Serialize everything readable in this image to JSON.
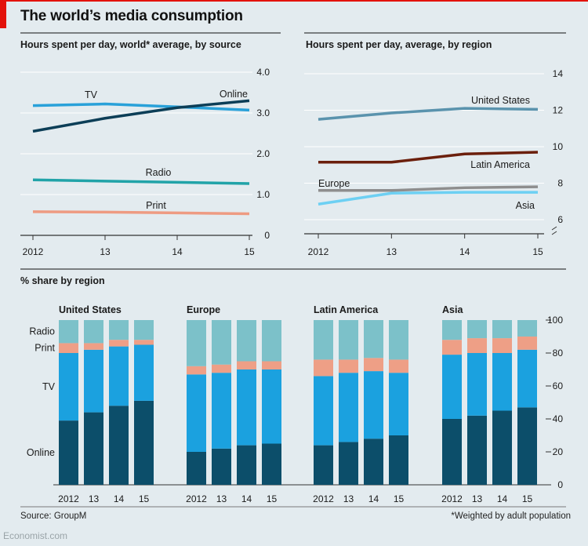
{
  "header": {
    "title": "The world’s media consumption",
    "source": "Source: GroupM",
    "footnote": "*Weighted by adult population",
    "credit": "Economist.com"
  },
  "colors": {
    "background": "#e3ebef",
    "accent_red": "#e3120b",
    "tv": "#29a1d9",
    "online": "#0c3e57",
    "radio": "#21a3a8",
    "print": "#ee9b82",
    "us": "#5a93ad",
    "latin_america": "#6b1f0c",
    "europe": "#8e8e8e",
    "asia": "#6dd0f3",
    "bar_online": "#0c4e6a",
    "bar_tv": "#1ba1df",
    "bar_print": "#ee9f86",
    "bar_radio": "#7cc1c9"
  },
  "chart_data": [
    {
      "type": "line",
      "title": "Hours spent per day, world* average, by source",
      "x": [
        "2012",
        "13",
        "14",
        "15"
      ],
      "yticks": [
        "0",
        "1.0",
        "2.0",
        "3.0",
        "4.0"
      ],
      "ylim": [
        0,
        4.0
      ],
      "series": [
        {
          "name": "TV",
          "values": [
            3.18,
            3.22,
            3.15,
            3.07
          ]
        },
        {
          "name": "Online",
          "values": [
            2.55,
            2.87,
            3.13,
            3.3
          ]
        },
        {
          "name": "Radio",
          "values": [
            1.36,
            1.33,
            1.3,
            1.27
          ]
        },
        {
          "name": "Print",
          "values": [
            0.58,
            0.57,
            0.55,
            0.53
          ]
        }
      ]
    },
    {
      "type": "line",
      "title": "Hours spent per day, average, by region",
      "x": [
        "2012",
        "13",
        "14",
        "15"
      ],
      "yticks": [
        "6",
        "8",
        "10",
        "12",
        "14"
      ],
      "ylim": [
        6,
        14
      ],
      "axis_break": true,
      "series": [
        {
          "name": "United States",
          "values": [
            11.5,
            11.85,
            12.1,
            12.05
          ]
        },
        {
          "name": "Latin America",
          "values": [
            9.15,
            9.15,
            9.6,
            9.7
          ]
        },
        {
          "name": "Europe",
          "values": [
            7.6,
            7.6,
            7.75,
            7.8
          ]
        },
        {
          "name": "Asia",
          "values": [
            6.85,
            7.45,
            7.5,
            7.5
          ]
        }
      ]
    },
    {
      "type": "bar",
      "stacked": true,
      "title": "% share by region",
      "categories": [
        "2012",
        "13",
        "14",
        "15"
      ],
      "yticks": [
        "0",
        "20",
        "40",
        "60",
        "80",
        "100"
      ],
      "ylim": [
        0,
        100
      ],
      "stack_labels": [
        "Online",
        "TV",
        "Print",
        "Radio"
      ],
      "groups": [
        {
          "name": "United States",
          "online": [
            39,
            44,
            48,
            51
          ],
          "tv": [
            41,
            38,
            36,
            34
          ],
          "print": [
            6,
            4,
            4,
            3
          ],
          "radio": [
            14,
            14,
            12,
            12
          ]
        },
        {
          "name": "Europe",
          "online": [
            20,
            22,
            24,
            25
          ],
          "tv": [
            47,
            46,
            46,
            45
          ],
          "print": [
            5,
            5,
            5,
            5
          ],
          "radio": [
            28,
            27,
            25,
            25
          ]
        },
        {
          "name": "Latin America",
          "online": [
            24,
            26,
            28,
            30
          ],
          "tv": [
            42,
            42,
            41,
            38
          ],
          "print": [
            10,
            8,
            8,
            8
          ],
          "radio": [
            24,
            24,
            23,
            24
          ]
        },
        {
          "name": "Asia",
          "online": [
            40,
            42,
            45,
            47
          ],
          "tv": [
            39,
            38,
            35,
            35
          ],
          "print": [
            9,
            9,
            9,
            8
          ],
          "radio": [
            12,
            11,
            11,
            10
          ]
        }
      ]
    }
  ]
}
